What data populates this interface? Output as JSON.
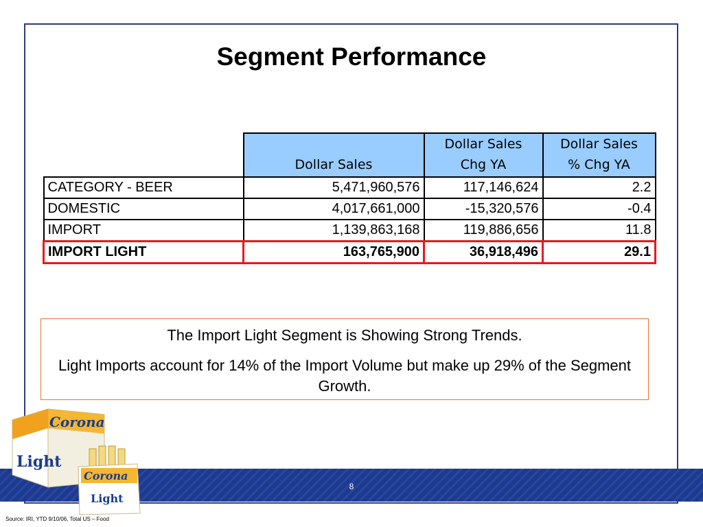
{
  "slide": {
    "title": "Segment Performance",
    "page_number": "8",
    "source": "Source:  IRI, YTD 9/10/06, Total US – Food"
  },
  "table": {
    "headers": {
      "col1_line2": "Dollar Sales",
      "col2_line1": "Dollar Sales",
      "col2_line2": "Chg YA",
      "col3_line1": "Dollar Sales",
      "col3_line2": "% Chg YA"
    },
    "rows": [
      {
        "label": "CATEGORY - BEER",
        "sales": "5,471,960,576",
        "chg": "117,146,624",
        "pct": "2.2"
      },
      {
        "label": "DOMESTIC",
        "sales": "4,017,661,000",
        "chg": "-15,320,576",
        "pct": "-0.4"
      },
      {
        "label": "IMPORT",
        "sales": "1,139,863,168",
        "chg": "119,886,656",
        "pct": "11.8"
      },
      {
        "label": "IMPORT LIGHT",
        "sales": "163,765,900",
        "chg": "36,918,496",
        "pct": "29.1"
      }
    ]
  },
  "callout": {
    "line1": "The Import Light Segment is Showing Strong Trends.",
    "line2": "Light Imports account for 14% of the Import Volume but make up 29% of the Segment Growth."
  },
  "product_image": {
    "brand_text": "Corona",
    "variant_text": "Light"
  },
  "colors": {
    "header_fill": "#99ccff",
    "highlight_border": "#e8191a",
    "callout_border": "#e8742f",
    "frame_border": "#2f3c7e",
    "footer_band": "#1d3a8c"
  }
}
